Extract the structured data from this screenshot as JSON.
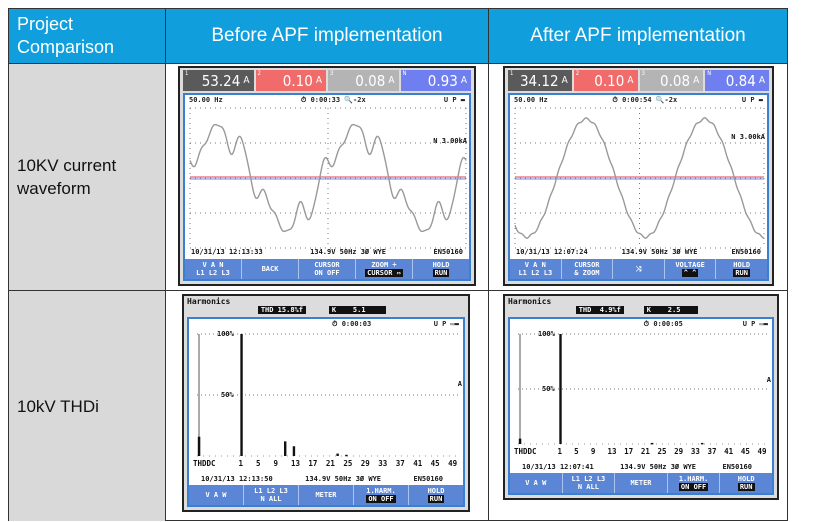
{
  "table": {
    "headers": [
      "Project Comparison",
      "Before APF implementation",
      "After APF implementation"
    ],
    "rows": [
      {
        "label": "10KV current waveform"
      },
      {
        "label": "10kV THDi"
      }
    ]
  },
  "colors": {
    "header": "#109fdc",
    "label_bg": "#d9d9d9",
    "key_bar": "#5b86d6",
    "read1": "#5a5a5a",
    "read2": "#f26b6b",
    "read3": "#b4b4b4",
    "read4": "#6f7ff0"
  },
  "waveform_before": {
    "readings": [
      {
        "n": "1",
        "v": "53.24",
        "u": "A"
      },
      {
        "n": "2",
        "v": "0.10",
        "u": "A"
      },
      {
        "n": "3",
        "v": "0.08",
        "u": "A"
      },
      {
        "n": "N",
        "v": "0.93",
        "u": "A"
      }
    ],
    "freq": "50.00 Hz",
    "timer": "0:00:33",
    "zoom": "-2x",
    "up": "U P",
    "scale": "N 3.00kA",
    "date": "10/31/13",
    "time": "12:13:33",
    "config": "134.9V 50Hz 3Ø WYE",
    "std": "EN50160",
    "keys": [
      [
        "V A N",
        "L1 L2 L3"
      ],
      [
        "BACK",
        ""
      ],
      [
        "CURSOR",
        "ON OFF"
      ],
      [
        "ZOOM ÷",
        "CURSOR ⇔"
      ],
      [
        "HOLD",
        "RUN"
      ]
    ]
  },
  "waveform_after": {
    "readings": [
      {
        "n": "1",
        "v": "34.12",
        "u": "A"
      },
      {
        "n": "2",
        "v": "0.10",
        "u": "A"
      },
      {
        "n": "3",
        "v": "0.08",
        "u": "A"
      },
      {
        "n": "N",
        "v": "0.84",
        "u": "A"
      }
    ],
    "freq": "50.00 Hz",
    "timer": "0:00:54",
    "zoom": "-2x",
    "up": "U P",
    "scale": "N 3.00kA",
    "date": "10/31/13",
    "time": "12:07:24",
    "config": "134.9V 50Hz 3Ø WYE",
    "std": "EN50160",
    "keys": [
      [
        "V A N",
        "L1 L2 L3"
      ],
      [
        "CURSOR",
        "& ZOOM"
      ],
      [
        "⤨",
        ""
      ],
      [
        "VOLTAGE",
        "^ ^"
      ],
      [
        "HOLD",
        "RUN"
      ]
    ]
  },
  "harmonics_before": {
    "title": "Harmonics",
    "thd": "THD 15.8%f",
    "k": "K    5.1",
    "timer": "0:00:03",
    "up": "U P",
    "y100": "100%",
    "y50": "50%",
    "unit": "A",
    "xticks": [
      "THDDC",
      "1",
      "5",
      "9",
      "13",
      "17",
      "21",
      "25",
      "29",
      "33",
      "37",
      "41",
      "45",
      "49"
    ],
    "date": "10/31/13",
    "time": "12:13:50",
    "config": "134.9V 50Hz 3Ø WYE",
    "std": "EN50160",
    "keys": [
      [
        "V A W",
        ""
      ],
      [
        "L1 L2 L3",
        "N  ALL"
      ],
      [
        "METER",
        ""
      ],
      [
        "1.HARM.",
        "ON OFF"
      ],
      [
        "HOLD",
        "RUN"
      ]
    ],
    "bars": {
      "THD": 15.8,
      "1": 100,
      "11": 12,
      "13": 8,
      "23": 2,
      "25": 1
    }
  },
  "harmonics_after": {
    "title": "Harmonics",
    "thd": "THD  4.9%f",
    "k": "K    2.5",
    "timer": "0:00:05",
    "up": "U P",
    "y100": "100%",
    "y50": "50%",
    "unit": "A",
    "xticks": [
      "THDDC",
      "1",
      "5",
      "9",
      "13",
      "17",
      "21",
      "25",
      "29",
      "33",
      "37",
      "41",
      "45",
      "49"
    ],
    "date": "10/31/13",
    "time": "12:07:41",
    "config": "134.9V 50Hz 3Ø WYE",
    "std": "EN50160",
    "keys": [
      [
        "V A W",
        ""
      ],
      [
        "L1 L2 L3",
        "N  ALL"
      ],
      [
        "METER",
        ""
      ],
      [
        "1.HARM.",
        "ON OFF"
      ],
      [
        "HOLD",
        "RUN"
      ]
    ],
    "bars": {
      "THD": 4.9,
      "1": 100,
      "23": 1,
      "35": 1
    }
  }
}
